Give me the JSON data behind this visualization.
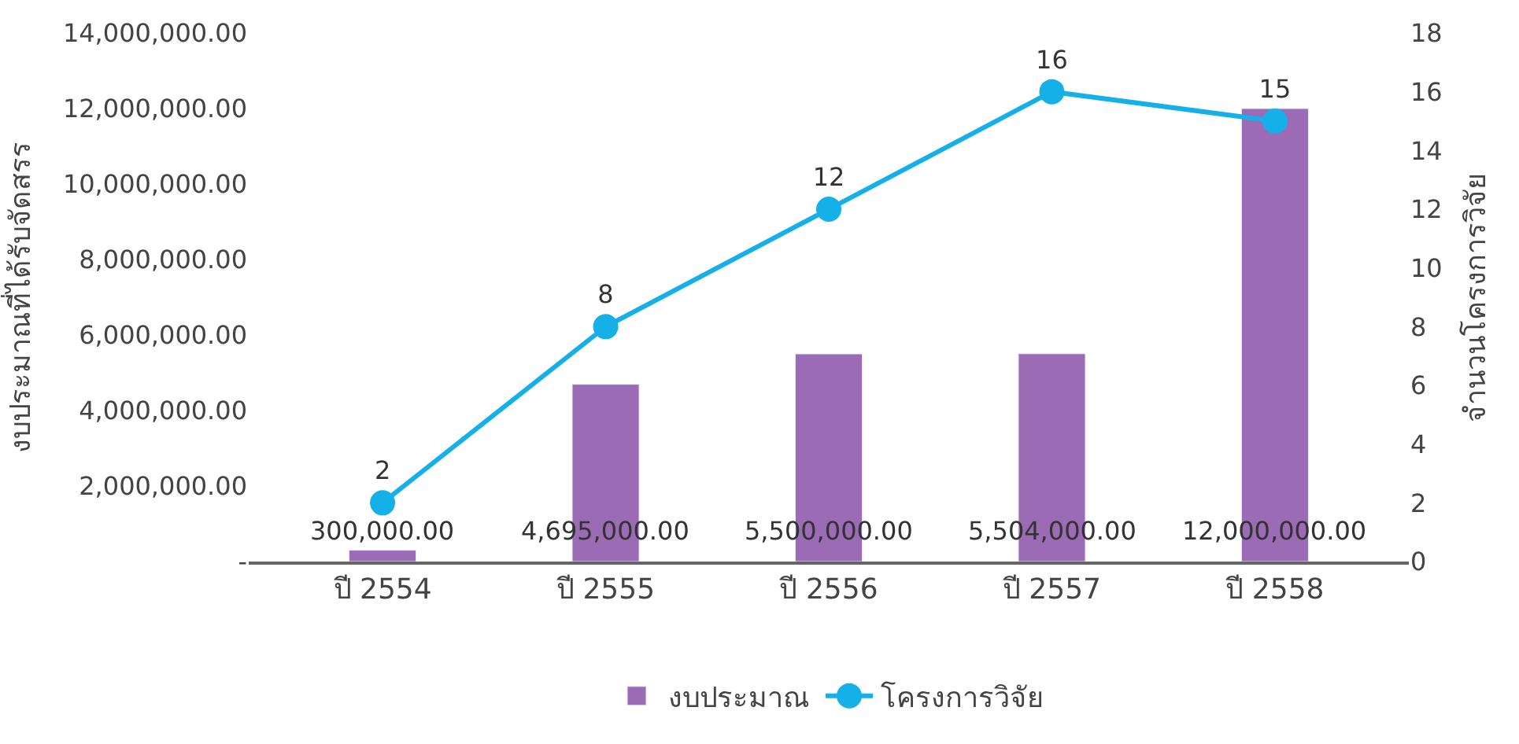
{
  "chart_data": {
    "type": "bar",
    "categories": [
      "ปี 2554",
      "ปี 2555",
      "ปี 2556",
      "ปี 2557",
      "ปี 2558"
    ],
    "ylabel": "งบประมาณที่ได้รับจัดสรร",
    "y2label": "จำนวนโครงการวิจัย",
    "series": [
      {
        "name": "งบประมาณ",
        "color": "#9b6bb5",
        "values": [
          300000,
          4695000,
          5500000,
          5504000,
          12000000
        ],
        "value_labels": [
          "300,000.00",
          "4,695,000.00",
          "5,500,000.00",
          "5,504,000.00",
          "12,000,000.00"
        ]
      },
      {
        "name": "โครงการวิจัย",
        "type": "line",
        "axis": "y2",
        "color": "#15b0e8",
        "values": [
          2,
          8,
          12,
          16,
          15
        ]
      }
    ],
    "ylim": [
      0,
      14000000
    ],
    "yticks": [
      {
        "value": 0,
        "label": "-"
      },
      {
        "value": 2000000,
        "label": "2,000,000.00"
      },
      {
        "value": 4000000,
        "label": "4,000,000.00"
      },
      {
        "value": 6000000,
        "label": "6,000,000.00"
      },
      {
        "value": 8000000,
        "label": "8,000,000.00"
      },
      {
        "value": 10000000,
        "label": "10,000,000.00"
      },
      {
        "value": 12000000,
        "label": "12,000,000.00"
      },
      {
        "value": 14000000,
        "label": "14,000,000.00"
      }
    ],
    "y2lim": [
      0,
      18
    ],
    "y2ticks": [
      0,
      2,
      4,
      6,
      8,
      10,
      12,
      14,
      16,
      18
    ],
    "data_labels": true,
    "marker": "circle",
    "line_style": "solid",
    "legend": "bottom"
  }
}
